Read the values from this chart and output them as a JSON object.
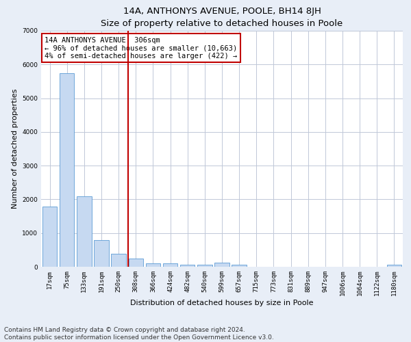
{
  "title": "14A, ANTHONYS AVENUE, POOLE, BH14 8JH",
  "subtitle": "Size of property relative to detached houses in Poole",
  "xlabel": "Distribution of detached houses by size in Poole",
  "ylabel": "Number of detached properties",
  "categories": [
    "17sqm",
    "75sqm",
    "133sqm",
    "191sqm",
    "250sqm",
    "308sqm",
    "366sqm",
    "424sqm",
    "482sqm",
    "540sqm",
    "599sqm",
    "657sqm",
    "715sqm",
    "773sqm",
    "831sqm",
    "889sqm",
    "947sqm",
    "1006sqm",
    "1064sqm",
    "1122sqm",
    "1180sqm"
  ],
  "values": [
    1780,
    5750,
    2080,
    800,
    390,
    240,
    110,
    110,
    70,
    60,
    120,
    60,
    0,
    0,
    0,
    0,
    0,
    0,
    0,
    0,
    60
  ],
  "bar_color": "#c6d9f1",
  "bar_edge_color": "#5b9bd5",
  "vline_pos": 4.57,
  "vline_color": "#c00000",
  "annotation_text": "14A ANTHONYS AVENUE: 306sqm\n← 96% of detached houses are smaller (10,663)\n4% of semi-detached houses are larger (422) →",
  "annotation_box_color": "#ffffff",
  "annotation_box_edge": "#c00000",
  "ylim": [
    0,
    7000
  ],
  "footer1": "Contains HM Land Registry data © Crown copyright and database right 2024.",
  "footer2": "Contains public sector information licensed under the Open Government Licence v3.0.",
  "background_color": "#e8eef7",
  "plot_bg_color": "#ffffff",
  "grid_color": "#c0c8d8",
  "title_fontsize": 9.5,
  "axis_label_fontsize": 8,
  "tick_fontsize": 6.5,
  "annotation_fontsize": 7.5,
  "footer_fontsize": 6.5
}
